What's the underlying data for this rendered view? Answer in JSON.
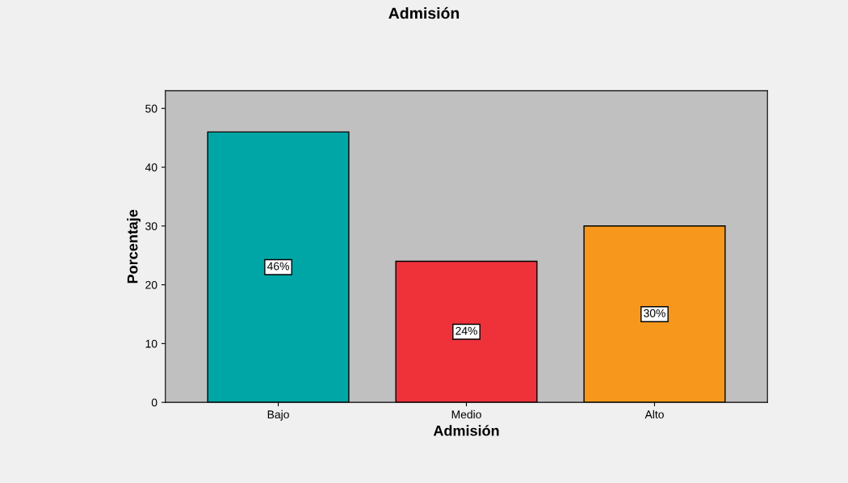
{
  "chart_data": {
    "type": "bar",
    "title": "Admisión",
    "xlabel": "Admisión",
    "ylabel": "Porcentaje",
    "categories": [
      "Bajo",
      "Medio",
      "Alto"
    ],
    "values": [
      46,
      24,
      30
    ],
    "colors": [
      "#00a6a6",
      "#ef323a",
      "#f7981d"
    ],
    "value_labels": [
      "46%",
      "24%",
      "30%"
    ],
    "ylim": [
      0,
      53
    ],
    "yticks": [
      0,
      10,
      20,
      30,
      40,
      50
    ],
    "grid": false
  }
}
